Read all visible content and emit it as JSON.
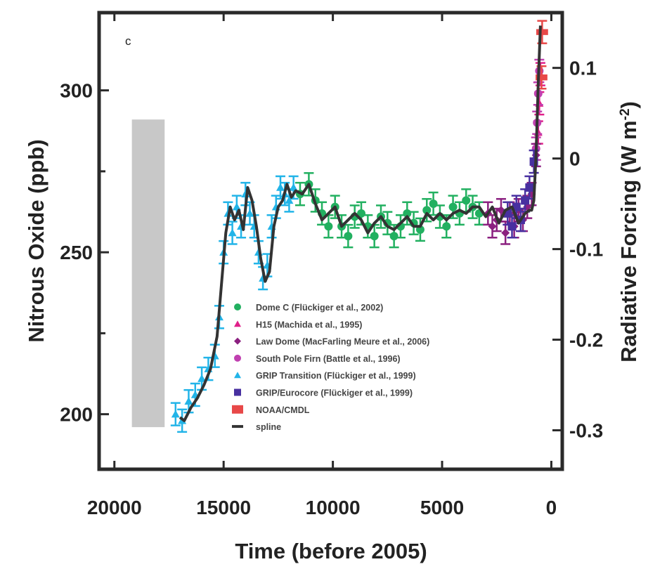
{
  "chart_data": {
    "type": "scatter",
    "panel_label": "c",
    "xlabel": "Time (before 2005)",
    "ylabel": "Nitrous Oxide (ppb)",
    "y2label": "Radiative Forcing (W m",
    "y2label_sup": "-2",
    "y2label_close": ")",
    "xlim": [
      20700,
      -500
    ],
    "ylim": [
      183,
      324
    ],
    "y2lim": [
      -0.343,
      0.161
    ],
    "x_ticks": [
      20000,
      15000,
      10000,
      5000,
      0
    ],
    "x_tick_labels": [
      "20000",
      "15000",
      "10000",
      "5000",
      "0"
    ],
    "y_ticks": [
      200,
      250,
      300
    ],
    "y_tick_labels": [
      "200",
      "250",
      "300"
    ],
    "y2_ticks": [
      0.1,
      0,
      -0.1,
      -0.2,
      -0.3
    ],
    "y2_tick_labels": [
      "0.1",
      "0",
      "-0.1",
      "-0.2",
      "-0.3"
    ],
    "glacial_range": {
      "x": [
        19200,
        17700
      ],
      "y": [
        196,
        291
      ],
      "color": "#c8c8c8"
    },
    "legend_position": "bottom-right",
    "series": [
      {
        "name": "Dome C (Flückiger et al., 2002)",
        "marker": "circle",
        "color": "#22b060",
        "x": [
          11500,
          11100,
          10800,
          10500,
          10200,
          9900,
          9600,
          9300,
          9000,
          8700,
          8400,
          8100,
          7800,
          7500,
          7200,
          6900,
          6600,
          6300,
          6000,
          5700,
          5400,
          5100,
          4800,
          4500,
          4200,
          3900,
          3600,
          3300
        ],
        "y": [
          268,
          271,
          266,
          262,
          258,
          264,
          258,
          255,
          261,
          262,
          258,
          255,
          261,
          259,
          255,
          258,
          262,
          259,
          257,
          263,
          265,
          261,
          258,
          264,
          262,
          266,
          264,
          262
        ]
      },
      {
        "name": "H15 (Machida et al., 1995)",
        "marker": "triangle",
        "color": "#e0208a",
        "x": [
          600,
          550,
          500
        ],
        "y": [
          287,
          296,
          305
        ]
      },
      {
        "name": "Law Dome (MacFarling Meure et al., 2006)",
        "marker": "diamond",
        "color": "#8b2080",
        "x": [
          2900,
          2700,
          2500,
          2300,
          2100,
          1900,
          1700,
          1500,
          1300,
          1100,
          900,
          700
        ],
        "y": [
          262,
          258,
          260,
          263,
          256,
          262,
          258,
          263,
          260,
          264,
          268,
          280
        ]
      },
      {
        "name": "South Pole Firn (Battle et al., 1996)",
        "marker": "circle",
        "color": "#c040b0",
        "x": [
          700,
          650,
          600,
          550
        ],
        "y": [
          282,
          290,
          299,
          306
        ]
      },
      {
        "name": "GRIP Transition (Flückiger et al., 1999)",
        "marker": "triangle",
        "color": "#22b4e8",
        "x": [
          17200,
          16900,
          16600,
          16300,
          16000,
          15700,
          15400,
          15200,
          15000,
          14800,
          14600,
          14400,
          14200,
          14000,
          13800,
          13600,
          13400,
          13200,
          13000,
          12800,
          12600,
          12400,
          12200,
          12000,
          11800
        ],
        "y": [
          200,
          198,
          204,
          206,
          211,
          214,
          218,
          230,
          250,
          262,
          256,
          264,
          258,
          268,
          262,
          258,
          250,
          242,
          246,
          258,
          264,
          270,
          268,
          266,
          270
        ]
      },
      {
        "name": "GRIP/Eurocore (Flückiger et al., 1999)",
        "marker": "square",
        "color": "#4830a0",
        "x": [
          2000,
          1800,
          1600,
          1400,
          1200,
          1000,
          800
        ],
        "y": [
          262,
          258,
          264,
          260,
          266,
          270,
          278
        ]
      },
      {
        "name": "NOAA/CMDL",
        "marker": "bar",
        "color": "#e84848",
        "x": [
          450,
          420
        ],
        "y": [
          304,
          318
        ]
      },
      {
        "name": "spline",
        "marker": "line",
        "color": "#333333",
        "x": [
          17000,
          16800,
          16500,
          16200,
          15900,
          15600,
          15300,
          15100,
          14900,
          14700,
          14500,
          14300,
          14100,
          13900,
          13700,
          13500,
          13300,
          13100,
          12900,
          12700,
          12500,
          12300,
          12100,
          11900,
          11700,
          11400,
          11100,
          10800,
          10500,
          10200,
          9900,
          9600,
          9300,
          9000,
          8700,
          8400,
          8100,
          7800,
          7500,
          7200,
          6900,
          6600,
          6300,
          6000,
          5700,
          5400,
          5100,
          4800,
          4500,
          4200,
          3900,
          3600,
          3300,
          3000,
          2700,
          2400,
          2100,
          1800,
          1500,
          1200,
          1000,
          900,
          800,
          700,
          600,
          500
        ],
        "y": [
          199,
          198,
          202,
          205,
          209,
          214,
          224,
          240,
          256,
          264,
          260,
          263,
          257,
          270,
          266,
          258,
          248,
          241,
          244,
          258,
          264,
          266,
          271,
          267,
          269,
          268,
          271,
          265,
          260,
          262,
          264,
          258,
          260,
          262,
          260,
          256,
          259,
          261,
          258,
          257,
          259,
          261,
          258,
          258,
          262,
          260,
          262,
          260,
          262,
          263,
          262,
          264,
          264,
          261,
          264,
          259,
          263,
          264,
          259,
          262,
          263,
          263,
          266,
          280,
          302,
          320
        ]
      }
    ]
  }
}
